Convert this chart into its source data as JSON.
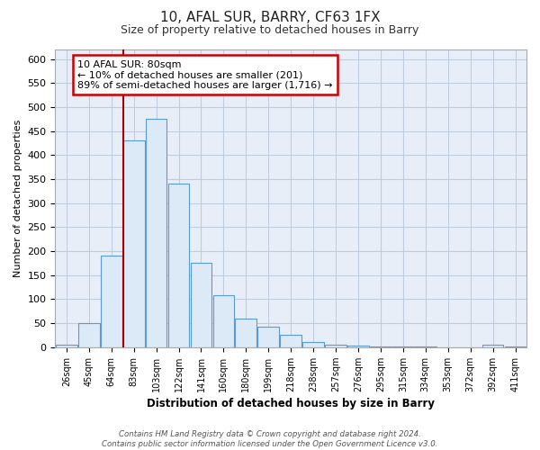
{
  "title1": "10, AFAL SUR, BARRY, CF63 1FX",
  "title2": "Size of property relative to detached houses in Barry",
  "xlabel": "Distribution of detached houses by size in Barry",
  "ylabel": "Number of detached properties",
  "bar_labels": [
    "26sqm",
    "45sqm",
    "64sqm",
    "83sqm",
    "103sqm",
    "122sqm",
    "141sqm",
    "160sqm",
    "180sqm",
    "199sqm",
    "218sqm",
    "238sqm",
    "257sqm",
    "276sqm",
    "295sqm",
    "315sqm",
    "334sqm",
    "353sqm",
    "372sqm",
    "392sqm",
    "411sqm"
  ],
  "bar_values": [
    6,
    50,
    190,
    430,
    475,
    340,
    175,
    108,
    60,
    43,
    25,
    10,
    5,
    3,
    2,
    1,
    1,
    0,
    0,
    5,
    2
  ],
  "bar_color": "#dce9f7",
  "bar_edge_color": "#5b9bd5",
  "vline_x_index": 3,
  "vline_color": "#aa0000",
  "annotation_title": "10 AFAL SUR: 80sqm",
  "annotation_line1": "← 10% of detached houses are smaller (201)",
  "annotation_line2": "89% of semi-detached houses are larger (1,716) →",
  "annotation_box_color": "#ffffff",
  "annotation_box_edge": "#cc0000",
  "ylim": [
    0,
    620
  ],
  "yticks": [
    0,
    50,
    100,
    150,
    200,
    250,
    300,
    350,
    400,
    450,
    500,
    550,
    600
  ],
  "footer1": "Contains HM Land Registry data © Crown copyright and database right 2024.",
  "footer2": "Contains public sector information licensed under the Open Government Licence v3.0.",
  "bg_color": "#ffffff",
  "plot_bg_color": "#e8eef8",
  "grid_color": "#c0cce0"
}
